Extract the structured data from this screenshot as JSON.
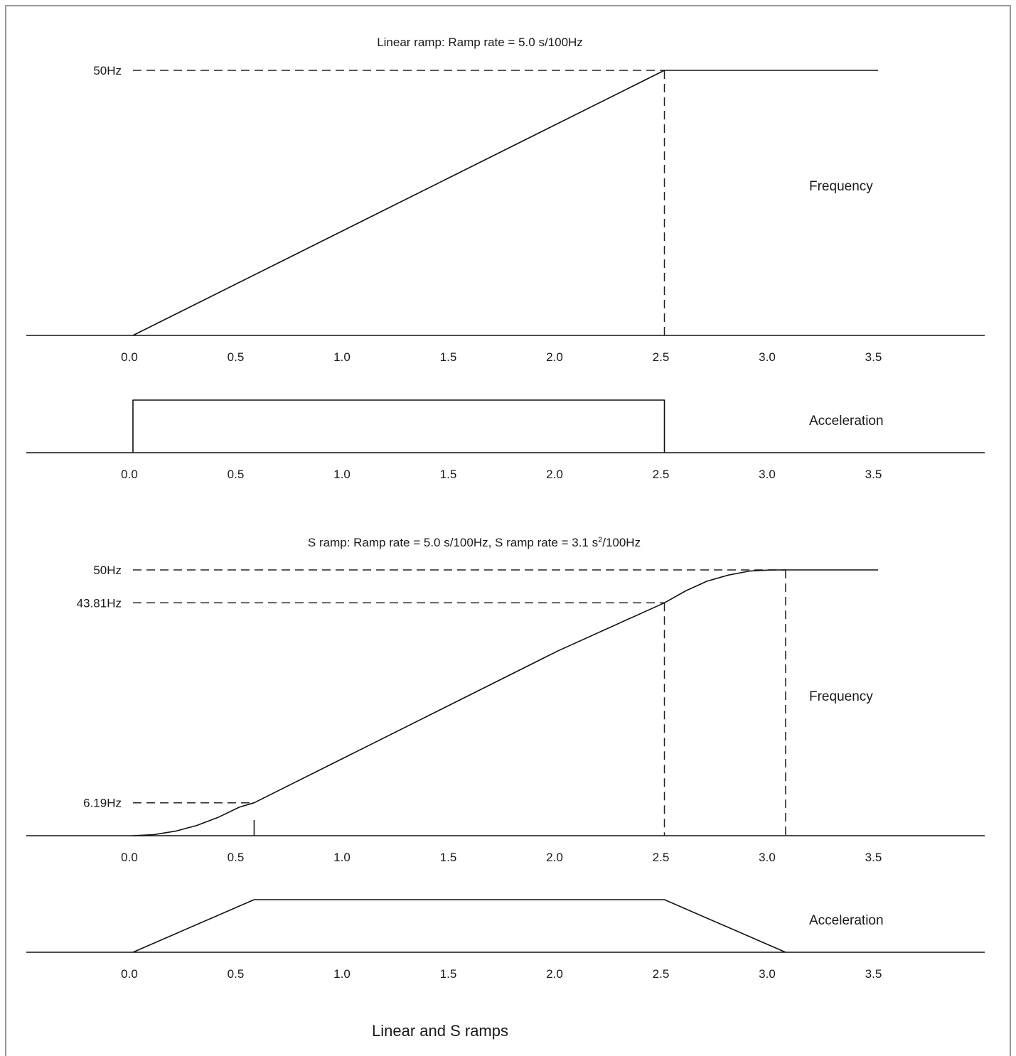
{
  "caption": "Linear and S ramps",
  "chart_data": [
    {
      "type": "line",
      "panel": "linear-frequency",
      "title": "Linear ramp: Ramp rate = 5.0 s/100Hz",
      "series_label": "Frequency",
      "x_ticks": [
        "0.0",
        "0.5",
        "1.0",
        "1.5",
        "2.0",
        "2.5",
        "3.0",
        "3.5"
      ],
      "xlim": [
        0,
        3.5
      ],
      "ylim": [
        0,
        50
      ],
      "y_labels": [
        {
          "text": "50Hz",
          "value": 50
        }
      ],
      "points": [
        [
          0,
          0
        ],
        [
          2.5,
          50
        ],
        [
          3.5,
          50
        ]
      ],
      "guides": [
        {
          "kind": "h",
          "value": 50,
          "from": 0,
          "to": 2.5
        },
        {
          "kind": "v",
          "value": 2.5,
          "from": 0,
          "to": 50
        }
      ]
    },
    {
      "type": "line",
      "panel": "linear-acceleration",
      "series_label": "Acceleration",
      "x_ticks": [
        "0.0",
        "0.5",
        "1.0",
        "1.5",
        "2.0",
        "2.5",
        "3.0",
        "3.5"
      ],
      "xlim": [
        0,
        3.5
      ],
      "ylim": [
        0,
        1
      ],
      "points": [
        [
          0,
          0
        ],
        [
          0,
          1
        ],
        [
          2.5,
          1
        ],
        [
          2.5,
          0
        ]
      ]
    },
    {
      "type": "line",
      "panel": "s-frequency",
      "title_parts": {
        "pre": "S ramp: Ramp rate = 5.0 s/100Hz, S ramp rate = 3.1 s",
        "sup": "2",
        "post": "/100Hz"
      },
      "series_label": "Frequency",
      "x_ticks": [
        "0.0",
        "0.5",
        "1.0",
        "1.5",
        "2.0",
        "2.5",
        "3.0",
        "3.5"
      ],
      "xlim": [
        0,
        3.5
      ],
      "ylim": [
        0,
        50
      ],
      "y_labels": [
        {
          "text": "50Hz",
          "value": 50
        },
        {
          "text": "43.81Hz",
          "value": 43.81
        },
        {
          "text": "6.19Hz",
          "value": 6.19
        }
      ],
      "points": [
        [
          0,
          0
        ],
        [
          0.1,
          0.21
        ],
        [
          0.2,
          0.85
        ],
        [
          0.3,
          1.93
        ],
        [
          0.4,
          3.43
        ],
        [
          0.5,
          5.36
        ],
        [
          0.57,
          6.19
        ],
        [
          1.0,
          14.79
        ],
        [
          1.5,
          24.79
        ],
        [
          2.0,
          34.79
        ],
        [
          2.5,
          43.81
        ],
        [
          2.6,
          46.05
        ],
        [
          2.7,
          47.87
        ],
        [
          2.8,
          49.03
        ],
        [
          2.9,
          49.78
        ],
        [
          3.0,
          49.99
        ],
        [
          3.07,
          50
        ],
        [
          3.5,
          50
        ]
      ],
      "guides": [
        {
          "kind": "h",
          "value": 50,
          "from": 0,
          "to": 3.07
        },
        {
          "kind": "h",
          "value": 43.81,
          "from": 0,
          "to": 2.5
        },
        {
          "kind": "h",
          "value": 6.19,
          "from": 0,
          "to": 0.57
        },
        {
          "kind": "v",
          "value": 2.5,
          "from": 0,
          "to": 43.81
        },
        {
          "kind": "v",
          "value": 3.07,
          "from": 0,
          "to": 50
        }
      ],
      "marks": [
        0.57
      ]
    },
    {
      "type": "line",
      "panel": "s-acceleration",
      "series_label": "Acceleration",
      "x_ticks": [
        "0.0",
        "0.5",
        "1.0",
        "1.5",
        "2.0",
        "2.5",
        "3.0",
        "3.5"
      ],
      "xlim": [
        0,
        3.5
      ],
      "ylim": [
        0,
        1
      ],
      "points": [
        [
          0,
          0
        ],
        [
          0.57,
          1
        ],
        [
          2.5,
          1
        ],
        [
          3.07,
          0
        ]
      ]
    }
  ]
}
